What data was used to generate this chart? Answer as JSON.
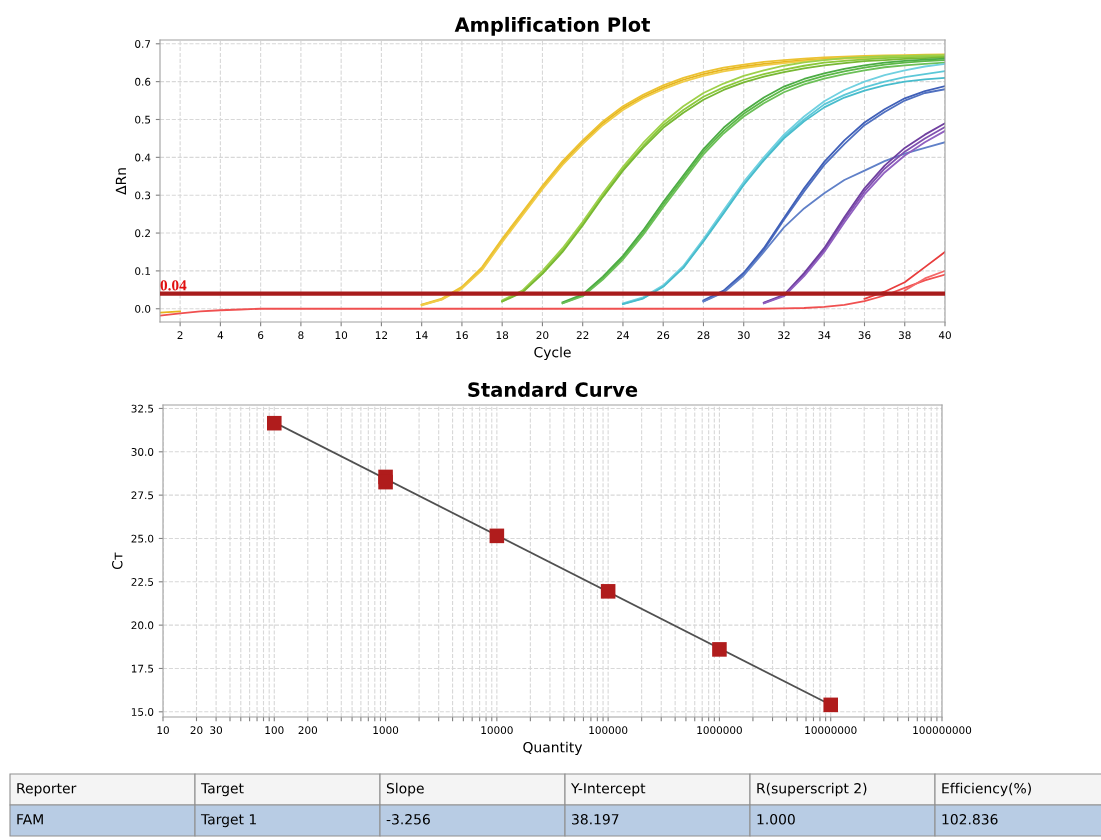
{
  "chart_data": [
    {
      "type": "line",
      "title": "Amplification Plot",
      "xlabel": "Cycle",
      "ylabel": "ΔRn",
      "x": [
        1,
        2,
        3,
        4,
        5,
        6,
        7,
        8,
        9,
        10,
        11,
        12,
        13,
        14,
        15,
        16,
        17,
        18,
        19,
        20,
        21,
        22,
        23,
        24,
        25,
        26,
        27,
        28,
        29,
        30,
        31,
        32,
        33,
        34,
        35,
        36,
        37,
        38,
        39,
        40
      ],
      "xlim": [
        1,
        40
      ],
      "xticks": [
        2,
        4,
        6,
        8,
        10,
        12,
        14,
        16,
        18,
        20,
        22,
        24,
        26,
        28,
        30,
        32,
        34,
        36,
        38,
        40
      ],
      "ylim": [
        -0.035,
        0.71
      ],
      "yticks": [
        {
          "value": 0,
          "label": "0.0"
        },
        0.1,
        0.2,
        0.3,
        0.4,
        0.5,
        0.6,
        0.7
      ],
      "grid": true,
      "legend": false,
      "marker": "none",
      "line_style": "solid",
      "ref_lines": [
        {
          "axis": "y",
          "value": 0.04,
          "label": "0.04",
          "color": "#a81c1c"
        }
      ],
      "series": [
        {
          "color": "#e6b41e",
          "values": [
            -0.01,
            -0.007,
            null,
            null,
            null,
            null,
            null,
            null,
            null,
            null,
            null,
            null,
            null,
            0.01,
            0.025,
            0.055,
            0.105,
            0.18,
            0.25,
            0.32,
            0.385,
            0.44,
            0.49,
            0.53,
            0.56,
            0.585,
            0.605,
            0.62,
            0.632,
            0.64,
            0.647,
            0.652,
            0.657,
            0.66,
            0.662,
            0.664,
            0.666,
            0.667,
            0.668,
            0.669
          ]
        },
        {
          "color": "#ecc232",
          "values": [
            null,
            null,
            null,
            null,
            null,
            null,
            null,
            null,
            null,
            null,
            null,
            null,
            null,
            0.011,
            0.027,
            0.058,
            0.11,
            0.185,
            0.255,
            0.325,
            0.39,
            0.445,
            0.495,
            0.535,
            0.565,
            0.59,
            0.61,
            0.625,
            0.637,
            0.645,
            0.652,
            0.657,
            0.661,
            0.664,
            0.666,
            0.668,
            0.669,
            0.67,
            0.671,
            0.672
          ]
        },
        {
          "color": "#f0cc48",
          "values": [
            null,
            null,
            null,
            null,
            null,
            null,
            null,
            null,
            null,
            null,
            null,
            null,
            null,
            0.009,
            0.024,
            0.053,
            0.102,
            0.176,
            0.246,
            0.316,
            0.38,
            0.435,
            0.485,
            0.525,
            0.556,
            0.58,
            0.6,
            0.615,
            0.627,
            0.636,
            0.643,
            0.649,
            0.654,
            0.658,
            0.661,
            0.663,
            0.665,
            0.666,
            0.667,
            0.668
          ]
        },
        {
          "color": "#8cc83c",
          "values": [
            null,
            null,
            null,
            null,
            null,
            null,
            null,
            null,
            null,
            null,
            null,
            null,
            null,
            null,
            null,
            null,
            null,
            0.02,
            0.045,
            0.095,
            0.155,
            0.225,
            0.3,
            0.37,
            0.43,
            0.485,
            0.525,
            0.56,
            0.585,
            0.605,
            0.62,
            0.632,
            0.642,
            0.65,
            0.655,
            0.659,
            0.662,
            0.664,
            0.666,
            0.667
          ]
        },
        {
          "color": "#9ed04a",
          "values": [
            null,
            null,
            null,
            null,
            null,
            null,
            null,
            null,
            null,
            null,
            null,
            null,
            null,
            null,
            null,
            null,
            null,
            0.022,
            0.048,
            0.1,
            0.16,
            0.23,
            0.305,
            0.375,
            0.438,
            0.492,
            0.535,
            0.57,
            0.595,
            0.615,
            0.63,
            0.642,
            0.651,
            0.657,
            0.662,
            0.665,
            0.667,
            0.668,
            0.669,
            0.67
          ]
        },
        {
          "color": "#78b834",
          "values": [
            null,
            null,
            null,
            null,
            null,
            null,
            null,
            null,
            null,
            null,
            null,
            null,
            null,
            null,
            null,
            null,
            null,
            0.019,
            0.043,
            0.092,
            0.15,
            0.22,
            0.295,
            0.365,
            0.425,
            0.478,
            0.518,
            0.552,
            0.578,
            0.598,
            0.613,
            0.625,
            0.635,
            0.643,
            0.649,
            0.654,
            0.657,
            0.66,
            0.662,
            0.664
          ]
        },
        {
          "color": "#5cb848",
          "values": [
            null,
            null,
            null,
            null,
            null,
            null,
            null,
            null,
            null,
            null,
            null,
            null,
            null,
            null,
            null,
            null,
            null,
            null,
            null,
            null,
            0.015,
            0.035,
            0.08,
            0.135,
            0.2,
            0.275,
            0.345,
            0.415,
            0.47,
            0.515,
            0.55,
            0.58,
            0.6,
            0.615,
            0.627,
            0.637,
            0.645,
            0.65,
            0.654,
            0.657
          ]
        },
        {
          "color": "#4cac44",
          "values": [
            null,
            null,
            null,
            null,
            null,
            null,
            null,
            null,
            null,
            null,
            null,
            null,
            null,
            null,
            null,
            null,
            null,
            null,
            null,
            null,
            0.017,
            0.038,
            0.085,
            0.14,
            0.207,
            0.282,
            0.352,
            0.422,
            0.478,
            0.522,
            0.558,
            0.587,
            0.607,
            0.622,
            0.634,
            0.643,
            0.65,
            0.655,
            0.658,
            0.661
          ]
        },
        {
          "color": "#6cc058",
          "values": [
            null,
            null,
            null,
            null,
            null,
            null,
            null,
            null,
            null,
            null,
            null,
            null,
            null,
            null,
            null,
            null,
            null,
            null,
            null,
            null,
            0.014,
            0.033,
            0.077,
            0.13,
            0.195,
            0.268,
            0.338,
            0.408,
            0.463,
            0.508,
            0.543,
            0.572,
            0.593,
            0.608,
            0.62,
            0.63,
            0.638,
            0.643,
            0.647,
            0.65
          ]
        },
        {
          "color": "#5cc8d8",
          "values": [
            null,
            null,
            null,
            null,
            null,
            null,
            null,
            null,
            null,
            null,
            null,
            null,
            null,
            null,
            null,
            null,
            null,
            null,
            null,
            null,
            null,
            null,
            null,
            0.013,
            0.028,
            0.06,
            0.11,
            0.18,
            0.255,
            0.33,
            0.395,
            0.455,
            0.5,
            0.54,
            0.565,
            0.585,
            0.6,
            0.612,
            0.62,
            0.628
          ]
        },
        {
          "color": "#70d0e0",
          "values": [
            null,
            null,
            null,
            null,
            null,
            null,
            null,
            null,
            null,
            null,
            null,
            null,
            null,
            null,
            null,
            null,
            null,
            null,
            null,
            null,
            null,
            null,
            null,
            0.014,
            0.03,
            0.062,
            0.113,
            0.184,
            0.26,
            0.335,
            0.4,
            0.46,
            0.508,
            0.548,
            0.578,
            0.6,
            0.617,
            0.63,
            0.64,
            0.647
          ]
        },
        {
          "color": "#48bccc",
          "values": [
            null,
            null,
            null,
            null,
            null,
            null,
            null,
            null,
            null,
            null,
            null,
            null,
            null,
            null,
            null,
            null,
            null,
            null,
            null,
            null,
            null,
            null,
            null,
            0.012,
            0.027,
            0.058,
            0.108,
            0.178,
            0.252,
            0.327,
            0.392,
            0.45,
            0.495,
            0.532,
            0.558,
            0.576,
            0.59,
            0.6,
            0.606,
            0.61
          ]
        },
        {
          "color": "#5070c0",
          "values": [
            null,
            null,
            null,
            null,
            null,
            null,
            null,
            null,
            null,
            null,
            null,
            null,
            null,
            null,
            null,
            null,
            null,
            null,
            null,
            null,
            null,
            null,
            null,
            null,
            null,
            null,
            null,
            0.02,
            0.045,
            0.09,
            0.155,
            0.235,
            0.31,
            0.38,
            0.435,
            0.485,
            0.52,
            0.55,
            0.57,
            0.58
          ]
        },
        {
          "color": "#4060b8",
          "values": [
            null,
            null,
            null,
            null,
            null,
            null,
            null,
            null,
            null,
            null,
            null,
            null,
            null,
            null,
            null,
            null,
            null,
            null,
            null,
            null,
            null,
            null,
            null,
            null,
            null,
            null,
            null,
            0.022,
            0.048,
            0.095,
            0.16,
            0.24,
            0.318,
            0.388,
            0.445,
            0.492,
            0.527,
            0.556,
            0.575,
            0.588
          ]
        },
        {
          "color": "#6080c8",
          "values": [
            null,
            null,
            null,
            null,
            null,
            null,
            null,
            null,
            null,
            null,
            null,
            null,
            null,
            null,
            null,
            null,
            null,
            null,
            null,
            null,
            null,
            null,
            null,
            null,
            null,
            null,
            null,
            0.019,
            0.043,
            0.088,
            0.15,
            0.215,
            0.265,
            0.305,
            0.34,
            0.365,
            0.39,
            0.41,
            0.425,
            0.44
          ]
        },
        {
          "color": "#8050b0",
          "values": [
            null,
            null,
            null,
            null,
            null,
            null,
            null,
            null,
            null,
            null,
            null,
            null,
            null,
            null,
            null,
            null,
            null,
            null,
            null,
            null,
            null,
            null,
            null,
            null,
            null,
            null,
            null,
            null,
            null,
            null,
            0.015,
            0.035,
            0.09,
            0.155,
            0.235,
            0.31,
            0.37,
            0.415,
            0.45,
            0.48
          ]
        },
        {
          "color": "#7040a0",
          "values": [
            null,
            null,
            null,
            null,
            null,
            null,
            null,
            null,
            null,
            null,
            null,
            null,
            null,
            null,
            null,
            null,
            null,
            null,
            null,
            null,
            null,
            null,
            null,
            null,
            null,
            null,
            null,
            null,
            null,
            null,
            0.016,
            0.037,
            0.094,
            0.16,
            0.242,
            0.318,
            0.378,
            0.425,
            0.46,
            0.49
          ]
        },
        {
          "color": "#9060c0",
          "values": [
            null,
            null,
            null,
            null,
            null,
            null,
            null,
            null,
            null,
            null,
            null,
            null,
            null,
            null,
            null,
            null,
            null,
            null,
            null,
            null,
            null,
            null,
            null,
            null,
            null,
            null,
            null,
            null,
            null,
            null,
            0.014,
            0.033,
            0.086,
            0.15,
            0.228,
            0.302,
            0.36,
            0.405,
            0.44,
            0.47
          ]
        },
        {
          "color": "#f05050",
          "values": [
            -0.018,
            -0.012,
            -0.007,
            -0.004,
            -0.002,
            0,
            0,
            0,
            0,
            0,
            0,
            0,
            0,
            0,
            0,
            0,
            0,
            0,
            0,
            0,
            0,
            0,
            0,
            0,
            0,
            0,
            0,
            0,
            0,
            0,
            0,
            0.001,
            0.002,
            0.005,
            0.01,
            0.02,
            0.035,
            0.055,
            0.075,
            0.09
          ]
        },
        {
          "color": "#e83c3c",
          "values": [
            null,
            null,
            null,
            null,
            null,
            null,
            null,
            null,
            null,
            null,
            null,
            null,
            null,
            null,
            null,
            null,
            null,
            null,
            null,
            null,
            null,
            null,
            null,
            null,
            null,
            null,
            null,
            null,
            null,
            null,
            null,
            null,
            null,
            null,
            null,
            0.026,
            0.045,
            0.07,
            0.11,
            0.15
          ]
        },
        {
          "color": "#f46868",
          "values": [
            null,
            null,
            null,
            null,
            null,
            null,
            null,
            null,
            null,
            null,
            null,
            null,
            null,
            null,
            null,
            null,
            null,
            null,
            null,
            null,
            null,
            null,
            null,
            null,
            null,
            null,
            null,
            null,
            null,
            null,
            null,
            null,
            null,
            null,
            null,
            null,
            null,
            0.048,
            0.08,
            0.1
          ]
        }
      ]
    },
    {
      "type": "scatter",
      "title": "Standard Curve",
      "xlabel": "Quantity",
      "ylabel": "Cᴛ",
      "log": "x",
      "xlim": [
        10,
        100000000
      ],
      "xticks": [
        10,
        20,
        30,
        {
          "value": 40,
          "label": null
        },
        {
          "value": 50,
          "label": null
        },
        {
          "value": 60,
          "label": null
        },
        {
          "value": 70,
          "label": null
        },
        {
          "value": 80,
          "label": null
        },
        {
          "value": 90,
          "label": null
        },
        100,
        200,
        {
          "value": 300,
          "label": null
        },
        {
          "value": 400,
          "label": null
        },
        {
          "value": 500,
          "label": null
        },
        {
          "value": 600,
          "label": null
        },
        {
          "value": 700,
          "label": null
        },
        {
          "value": 800,
          "label": null
        },
        {
          "value": 900,
          "label": null
        },
        1000,
        {
          "value": 2000,
          "label": null
        },
        {
          "value": 3000,
          "label": null
        },
        {
          "value": 4000,
          "label": null
        },
        {
          "value": 5000,
          "label": null
        },
        {
          "value": 6000,
          "label": null
        },
        {
          "value": 7000,
          "label": null
        },
        {
          "value": 8000,
          "label": null
        },
        {
          "value": 9000,
          "label": null
        },
        10000,
        {
          "value": 20000,
          "label": null
        },
        {
          "value": 30000,
          "label": null
        },
        {
          "value": 40000,
          "label": null
        },
        {
          "value": 50000,
          "label": null
        },
        {
          "value": 60000,
          "label": null
        },
        {
          "value": 70000,
          "label": null
        },
        {
          "value": 80000,
          "label": null
        },
        {
          "value": 90000,
          "label": null
        },
        100000,
        {
          "value": 200000,
          "label": null
        },
        {
          "value": 300000,
          "label": null
        },
        {
          "value": 400000,
          "label": null
        },
        {
          "value": 500000,
          "label": null
        },
        {
          "value": 600000,
          "label": null
        },
        {
          "value": 700000,
          "label": null
        },
        {
          "value": 800000,
          "label": null
        },
        {
          "value": 900000,
          "label": null
        },
        1000000,
        {
          "value": 2000000,
          "label": null
        },
        {
          "value": 3000000,
          "label": null
        },
        {
          "value": 4000000,
          "label": null
        },
        {
          "value": 5000000,
          "label": null
        },
        {
          "value": 6000000,
          "label": null
        },
        {
          "value": 7000000,
          "label": null
        },
        {
          "value": 8000000,
          "label": null
        },
        {
          "value": 9000000,
          "label": null
        },
        10000000,
        {
          "value": 20000000,
          "label": null
        },
        {
          "value": 30000000,
          "label": null
        },
        {
          "value": 40000000,
          "label": null
        },
        {
          "value": 50000000,
          "label": null
        },
        {
          "value": 60000000,
          "label": null
        },
        {
          "value": 70000000,
          "label": null
        },
        {
          "value": 80000000,
          "label": null
        },
        {
          "value": 90000000,
          "label": null
        },
        100000000
      ],
      "ylim": [
        14.7,
        32.7
      ],
      "yticks": [
        {
          "value": 15,
          "label": "15.0"
        },
        17.5,
        {
          "value": 20,
          "label": "20.0"
        },
        22.5,
        {
          "value": 25,
          "label": "25.0"
        },
        27.5,
        {
          "value": 30,
          "label": "30.0"
        },
        32.5
      ],
      "grid": true,
      "legend": false,
      "series": [
        {
          "type": "line",
          "color": "#505050",
          "marker": "none",
          "line_style": "solid",
          "x": [
            100,
            10000000
          ],
          "values": [
            31.7,
            15.4
          ]
        },
        {
          "type": "scatter",
          "color": "#b01c1c",
          "marker": "square",
          "x": [
            100,
            1000,
            1000,
            10000,
            100000,
            1000000,
            10000000
          ],
          "values": [
            31.65,
            28.55,
            28.25,
            25.15,
            21.95,
            18.6,
            15.4
          ]
        }
      ],
      "annotations": [
        "Reporter",
        "Target",
        "Slope",
        "Y-Intercept",
        "R(superscript 2)",
        "Efficiency(%)",
        "FAM",
        "Target 1",
        "-3.256",
        "38.197",
        "1.000",
        "102.836"
      ]
    }
  ]
}
